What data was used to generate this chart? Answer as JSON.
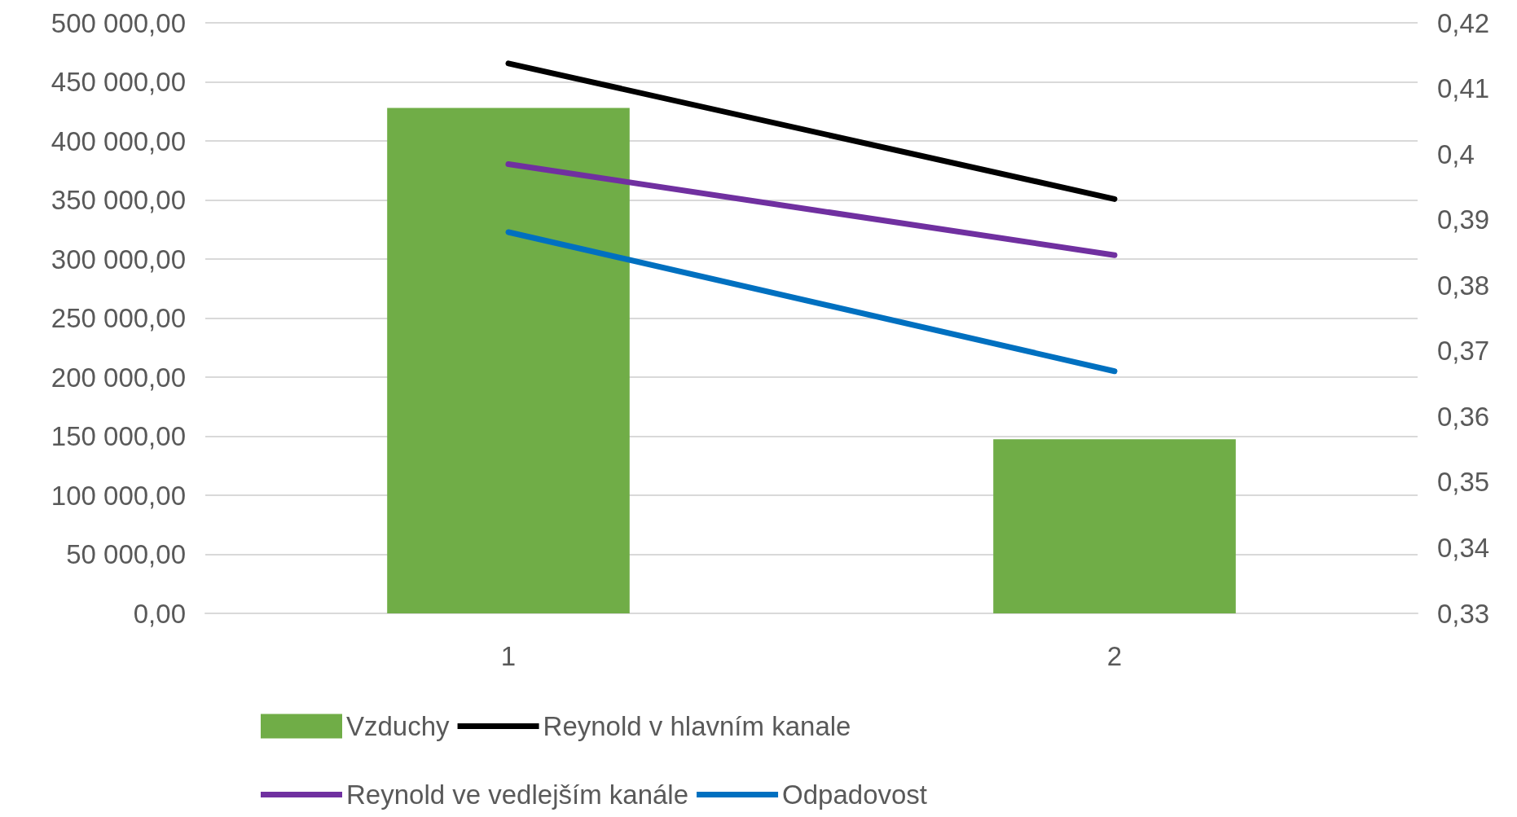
{
  "chart_data": {
    "type": "bar",
    "categories": [
      "1",
      "2"
    ],
    "series": [
      {
        "name": "Vzduchy",
        "color": "#70ad47",
        "values": [
          428000,
          147500
        ]
      },
      {
        "name": "Reynold v hlavním kanale",
        "type": "line",
        "color": "#000000",
        "values": [
          465600,
          350800
        ]
      },
      {
        "name": "Reynold ve vedlejším kanále",
        "type": "line",
        "color": "#7030a0",
        "values": [
          380300,
          303300
        ]
      },
      {
        "name": "Odpadovost",
        "type": "line",
        "color": "#0070c0",
        "axis": "y2",
        "values": [
          0.3881,
          0.3669
        ]
      }
    ],
    "ylim": [
      0,
      500000
    ],
    "yticks": [
      {
        "value": 0,
        "label": "0,00"
      },
      {
        "value": 50000,
        "label": "50 000,00"
      },
      {
        "value": 100000,
        "label": "100 000,00"
      },
      {
        "value": 150000,
        "label": "150 000,00"
      },
      {
        "value": 200000,
        "label": "200 000,00"
      },
      {
        "value": 250000,
        "label": "250 000,00"
      },
      {
        "value": 300000,
        "label": "300 000,00"
      },
      {
        "value": 350000,
        "label": "350 000,00"
      },
      {
        "value": 400000,
        "label": "400 000,00"
      },
      {
        "value": 450000,
        "label": "450 000,00"
      },
      {
        "value": 500000,
        "label": "500 000,00"
      }
    ],
    "y2lim": [
      0.33,
      0.42
    ],
    "y2ticks": [
      {
        "value": 0.33,
        "label": "0,33"
      },
      {
        "value": 0.34,
        "label": "0,34"
      },
      {
        "value": 0.35,
        "label": "0,35"
      },
      {
        "value": 0.36,
        "label": "0,36"
      },
      {
        "value": 0.37,
        "label": "0,37"
      },
      {
        "value": 0.38,
        "label": "0,38"
      },
      {
        "value": 0.39,
        "label": "0,39"
      },
      {
        "value": 0.4,
        "label": "0,4"
      },
      {
        "value": 0.41,
        "label": "0,41"
      },
      {
        "value": 0.42,
        "label": "0,42"
      }
    ],
    "grid": "y",
    "legend": "bottom",
    "marker": "none",
    "line_style": "solid"
  }
}
